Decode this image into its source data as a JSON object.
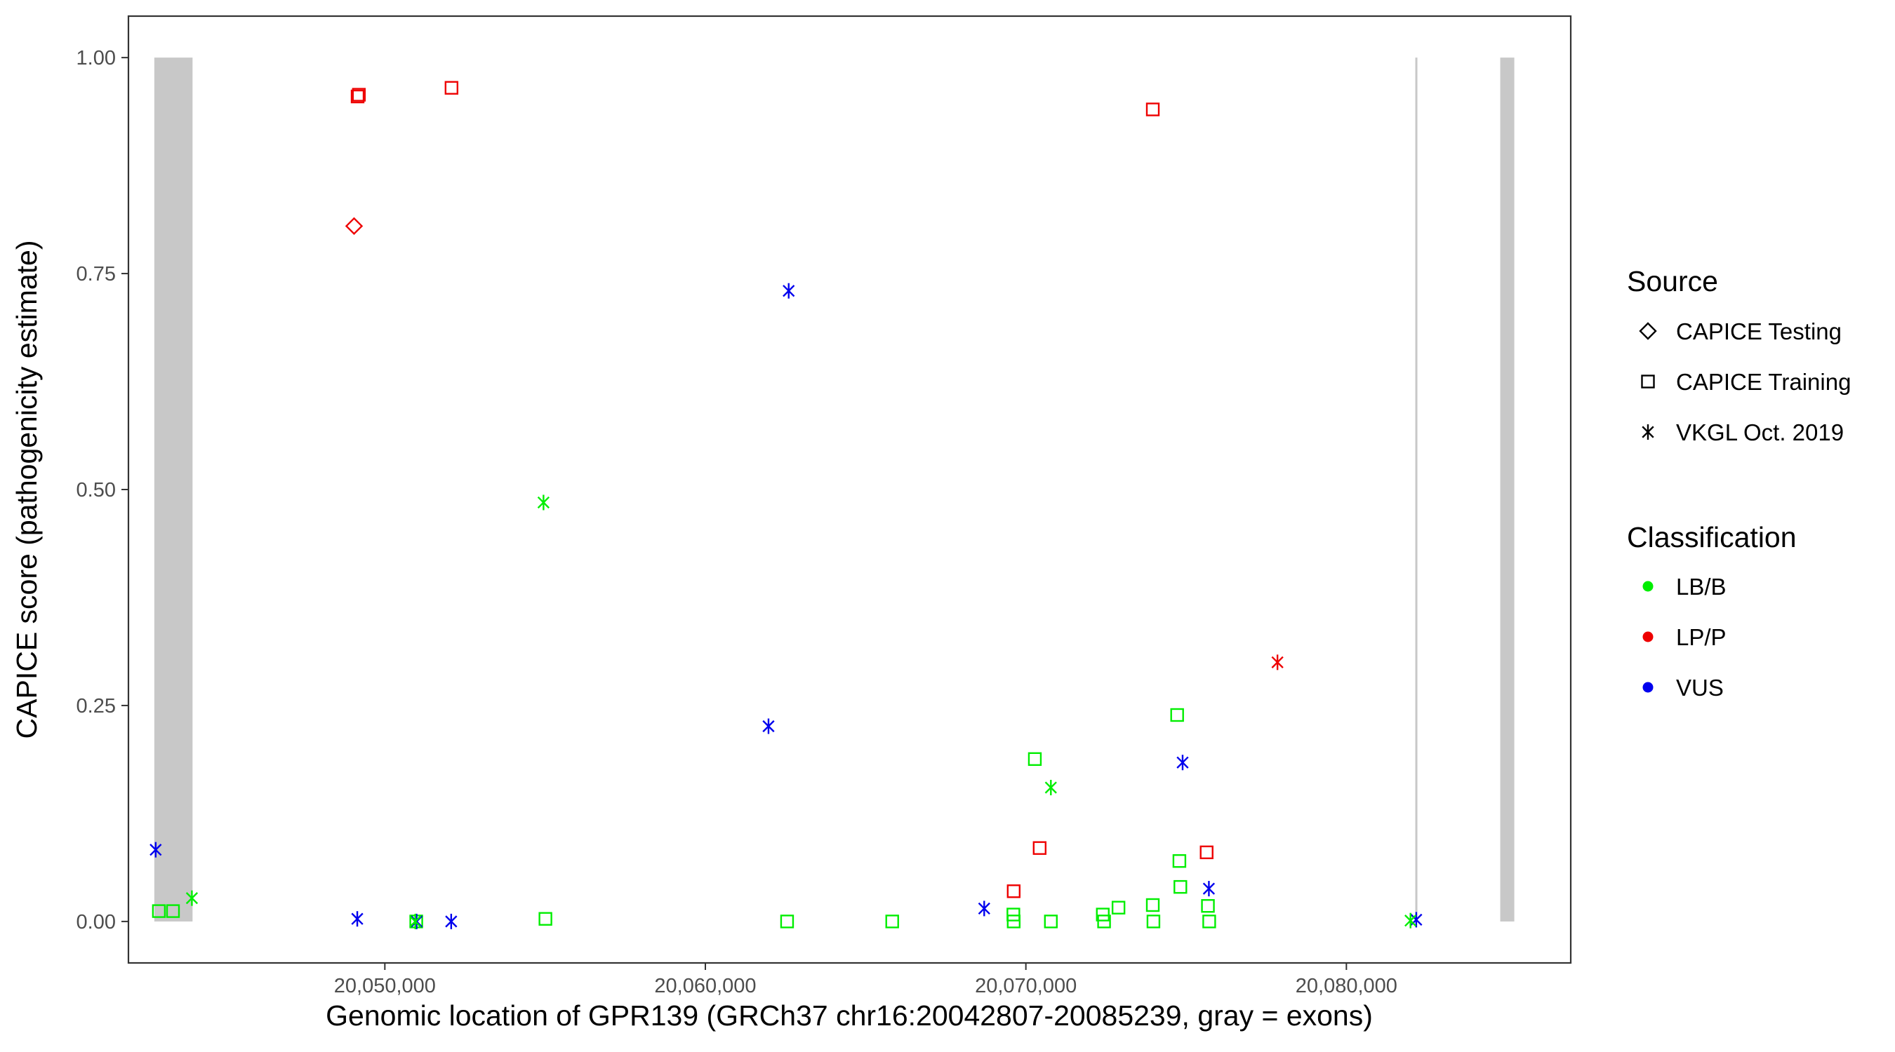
{
  "chart_data": {
    "type": "scatter",
    "xlabel": "Genomic location of GPR139 (GRCh37 chr16:20042807-20085239, gray = exons)",
    "ylabel": "CAPICE score (pathogenicity estimate)",
    "xlim": [
      20042000,
      20087000
    ],
    "ylim": [
      -0.048,
      1.048
    ],
    "x_ticks": [
      20050000,
      20060000,
      20070000,
      20080000
    ],
    "x_tick_labels": [
      "20,050,000",
      "20,060,000",
      "20,070,000",
      "20,080,000"
    ],
    "y_ticks": [
      0,
      0.25,
      0.5,
      0.75,
      1.0
    ],
    "y_tick_labels": [
      "0.00",
      "0.25",
      "0.50",
      "0.75",
      "1.00"
    ],
    "grid": false,
    "exons": [
      {
        "start": 20042807,
        "end": 20044000
      },
      {
        "start": 20082150,
        "end": 20082200
      },
      {
        "start": 20084800,
        "end": 20085239
      }
    ],
    "exon_color": "#c8c8c8",
    "colors": {
      "LB/B": "#00ee00",
      "LP/P": "#ee0000",
      "VUS": "#0000ee"
    },
    "legend": {
      "placement": "right",
      "source_title": "Source",
      "source_items": [
        {
          "label": "CAPICE Testing",
          "shape": "diamond"
        },
        {
          "label": "CAPICE Training",
          "shape": "square"
        },
        {
          "label": "VKGL Oct. 2019",
          "shape": "asterisk"
        }
      ],
      "class_title": "Classification",
      "class_items": [
        {
          "label": "LB/B",
          "key": "LB/B"
        },
        {
          "label": "LP/P",
          "key": "LP/P"
        },
        {
          "label": "VUS",
          "key": "VUS"
        }
      ]
    },
    "series": [
      {
        "source": "CAPICE Testing",
        "classification": "LP/P",
        "points": [
          [
            20049040,
            0.805
          ]
        ]
      },
      {
        "source": "CAPICE Training",
        "classification": "LP/P",
        "points": [
          [
            20049150,
            0.955
          ],
          [
            20049190,
            0.957
          ],
          [
            20052080,
            0.965
          ],
          [
            20073960,
            0.94
          ],
          [
            20070430,
            0.085
          ],
          [
            20069620,
            0.035
          ],
          [
            20075640,
            0.08
          ]
        ]
      },
      {
        "source": "CAPICE Training",
        "classification": "LB/B",
        "points": [
          [
            20042950,
            0.012
          ],
          [
            20043390,
            0.012
          ],
          [
            20050980,
            0.0
          ],
          [
            20055010,
            0.003
          ],
          [
            20062550,
            0.0
          ],
          [
            20065830,
            0.0
          ],
          [
            20070280,
            0.188
          ],
          [
            20069610,
            0.008
          ],
          [
            20069620,
            0.0
          ],
          [
            20070780,
            0.0
          ],
          [
            20072400,
            0.008
          ],
          [
            20072440,
            0.0
          ],
          [
            20072890,
            0.016
          ],
          [
            20073960,
            0.019
          ],
          [
            20073980,
            0.0
          ],
          [
            20074720,
            0.239
          ],
          [
            20074790,
            0.07
          ],
          [
            20074820,
            0.04
          ],
          [
            20075680,
            0.018
          ],
          [
            20075720,
            0.0
          ]
        ]
      },
      {
        "source": "VKGL Oct. 2019",
        "classification": "VUS",
        "points": [
          [
            20042850,
            0.083
          ],
          [
            20049140,
            0.003
          ],
          [
            20050990,
            0.0
          ],
          [
            20052070,
            0.0
          ],
          [
            20062600,
            0.73
          ],
          [
            20061970,
            0.226
          ],
          [
            20068700,
            0.015
          ],
          [
            20074890,
            0.184
          ],
          [
            20075710,
            0.038
          ],
          [
            20082180,
            0.002
          ]
        ]
      },
      {
        "source": "VKGL Oct. 2019",
        "classification": "LB/B",
        "points": [
          [
            20043980,
            0.027
          ],
          [
            20050950,
            0.0
          ],
          [
            20054950,
            0.485
          ],
          [
            20070780,
            0.155
          ],
          [
            20082000,
            0.001
          ]
        ]
      },
      {
        "source": "VKGL Oct. 2019",
        "classification": "LP/P",
        "points": [
          [
            20077850,
            0.3
          ]
        ]
      }
    ]
  }
}
